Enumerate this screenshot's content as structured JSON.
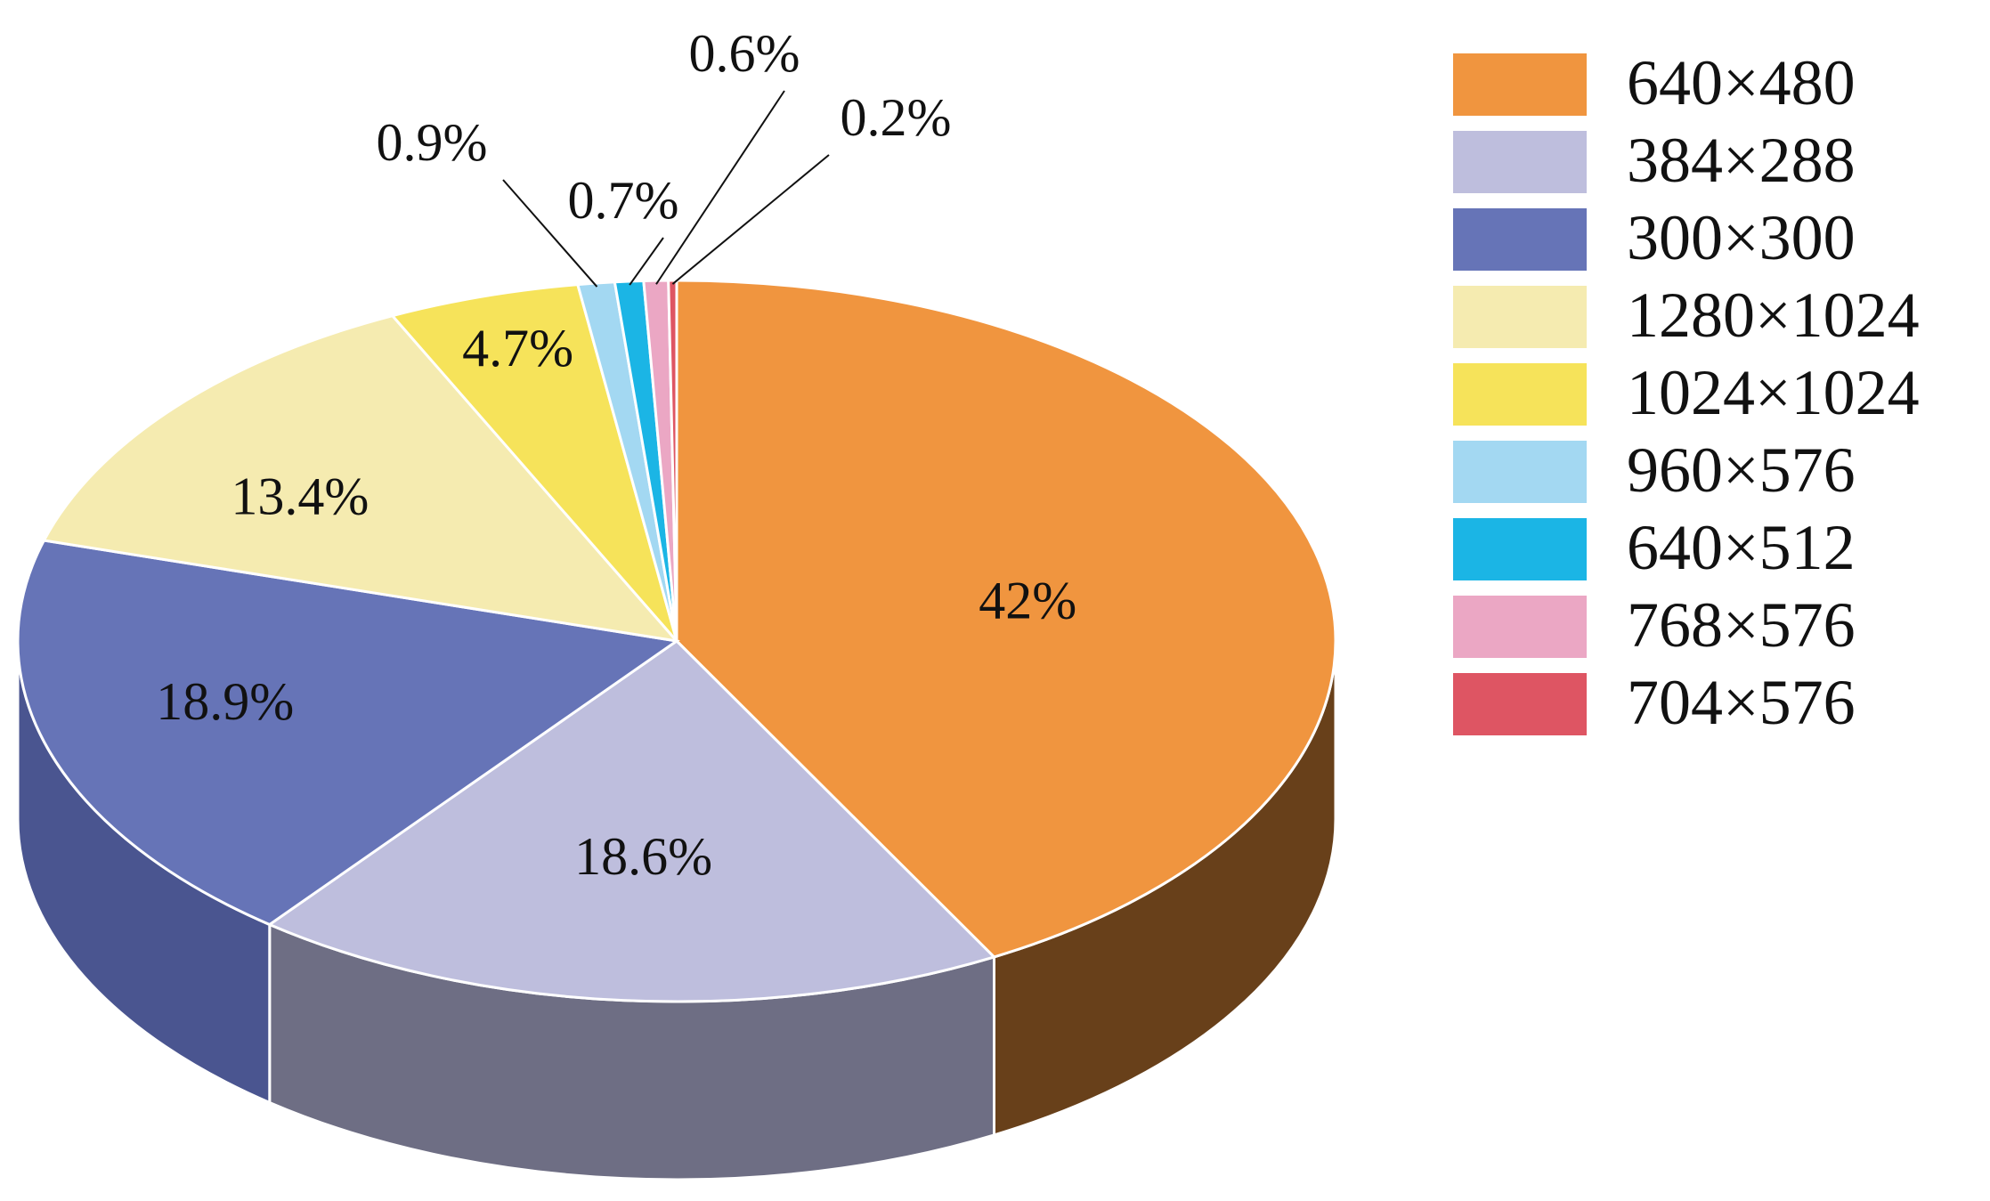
{
  "chart_data": {
    "type": "pie",
    "style": "3d",
    "legend_position": "right",
    "slices": [
      {
        "label": "640×480",
        "value": 42,
        "value_label": "42%",
        "color": "#F0953F",
        "side_color": "#68401A"
      },
      {
        "label": "384×288",
        "value": 18.6,
        "value_label": "18.6%",
        "color": "#BEBEDD",
        "side_color": "#6E6E84"
      },
      {
        "label": "300×300",
        "value": 18.9,
        "value_label": "18.9%",
        "color": "#6674B7",
        "side_color": "#4A5590"
      },
      {
        "label": "1280×1024",
        "value": 13.4,
        "value_label": "13.4%",
        "color": "#F5EBB0",
        "side_color": "#B8AF7C"
      },
      {
        "label": "1024×1024",
        "value": 4.7,
        "value_label": "4.7%",
        "color": "#F6E35A",
        "side_color": "#B7A83C"
      },
      {
        "label": "960×576",
        "value": 0.9,
        "value_label": "0.9%",
        "color": "#A3D8F2",
        "side_color": "#6E9CB2"
      },
      {
        "label": "640×512",
        "value": 0.7,
        "value_label": "0.7%",
        "color": "#1BB5E5",
        "side_color": "#127FA2"
      },
      {
        "label": "768×576",
        "value": 0.6,
        "value_label": "0.6%",
        "color": "#EBA7C4",
        "side_color": "#A87A8D"
      },
      {
        "label": "704×576",
        "value": 0.2,
        "value_label": "0.2%",
        "color": "#DE5563",
        "side_color": "#9E3C46"
      }
    ]
  }
}
